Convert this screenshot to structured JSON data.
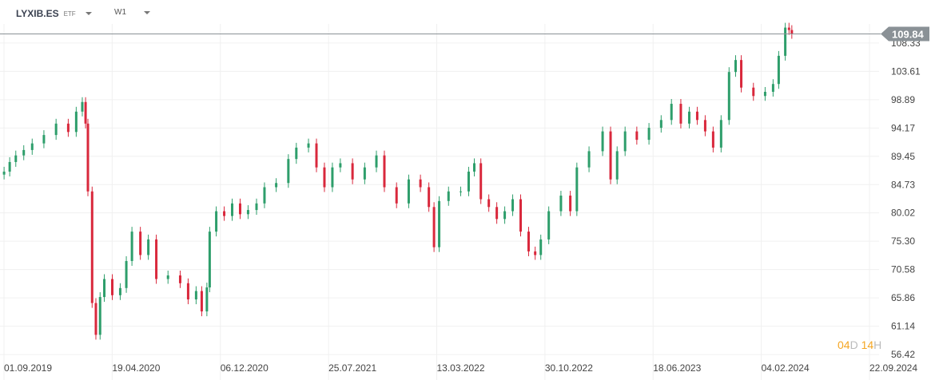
{
  "header": {
    "symbol": "LYXIB.ES",
    "instrument_type": "ETF",
    "timeframe": "W1"
  },
  "countdown": {
    "days": "04",
    "days_unit": "D",
    "hours": "14",
    "hours_unit": "H"
  },
  "colors": {
    "up": "#2e9e6b",
    "down": "#d9283c",
    "price_badge": "#8a9196",
    "countdown": "#f5a623"
  },
  "chart_data": {
    "type": "candlestick",
    "title": "",
    "last_price": 109.84,
    "y_ticks": [
      "108.33",
      "103.61",
      "98.89",
      "94.17",
      "89.45",
      "84.73",
      "80.02",
      "75.30",
      "70.58",
      "65.86",
      "61.14",
      "56.42"
    ],
    "x_ticks": [
      "01.09.2019",
      "19.04.2020",
      "06.12.2020",
      "25.07.2021",
      "13.03.2022",
      "30.10.2022",
      "18.06.2023",
      "04.02.2024",
      "22.09.2024"
    ],
    "ylim": [
      54.3,
      115.5
    ],
    "grid": true,
    "candles": [
      [
        "2019-07-12",
        86.9
      ],
      [
        "2019-07-24",
        88.5
      ],
      [
        "2019-08-06",
        89.6
      ],
      [
        "2019-08-23",
        90.5
      ],
      [
        "2019-09-10",
        91.6
      ],
      [
        "2019-10-05",
        93.0
      ],
      [
        "2019-10-31",
        94.9
      ],
      [
        "2019-11-26",
        93.5
      ],
      [
        "2019-12-13",
        96.9
      ],
      [
        "2019-12-26",
        98.5
      ],
      [
        "2020-01-02",
        94.9
      ],
      [
        "2020-01-07",
        83.6
      ],
      [
        "2020-01-16",
        65.0
      ],
      [
        "2020-01-24",
        59.7
      ],
      [
        "2020-02-02",
        66.0
      ],
      [
        "2020-02-11",
        69.0
      ],
      [
        "2020-02-28",
        66.3
      ],
      [
        "2020-03-16",
        67.5
      ],
      [
        "2020-03-29",
        72.0
      ],
      [
        "2020-04-10",
        76.9
      ],
      [
        "2020-04-28",
        73.0
      ],
      [
        "2020-05-15",
        75.6
      ],
      [
        "2020-06-01",
        69.0
      ],
      [
        "2020-06-26",
        69.6
      ],
      [
        "2020-07-22",
        68.3
      ],
      [
        "2020-08-08",
        65.6
      ],
      [
        "2020-08-25",
        67.0
      ],
      [
        "2020-09-06",
        63.6
      ],
      [
        "2020-09-17",
        67.6
      ],
      [
        "2020-09-23",
        76.9
      ],
      [
        "2020-10-07",
        80.3
      ],
      [
        "2020-10-24",
        79.5
      ],
      [
        "2020-11-10",
        81.6
      ],
      [
        "2020-11-27",
        79.8
      ],
      [
        "2020-12-14",
        80.5
      ],
      [
        "2021-01-01",
        81.6
      ],
      [
        "2021-01-18",
        84.3
      ],
      [
        "2021-02-12",
        85.0
      ],
      [
        "2021-03-10",
        89.0
      ],
      [
        "2021-03-27",
        90.9
      ],
      [
        "2021-04-22",
        91.6
      ],
      [
        "2021-05-09",
        87.6
      ],
      [
        "2021-05-26",
        84.3
      ],
      [
        "2021-06-12",
        87.6
      ],
      [
        "2021-06-29",
        88.3
      ],
      [
        "2021-07-25",
        85.6
      ],
      [
        "2021-08-20",
        87.6
      ],
      [
        "2021-09-14",
        89.6
      ],
      [
        "2021-10-01",
        84.3
      ],
      [
        "2021-10-27",
        81.6
      ],
      [
        "2021-11-22",
        85.6
      ],
      [
        "2021-12-17",
        84.3
      ],
      [
        "2022-01-04",
        81.0
      ],
      [
        "2022-01-15",
        74.3
      ],
      [
        "2022-01-26",
        82.0
      ],
      [
        "2022-02-15",
        83.6
      ],
      [
        "2022-03-13",
        83.6
      ],
      [
        "2022-03-30",
        86.9
      ],
      [
        "2022-04-11",
        88.3
      ],
      [
        "2022-04-25",
        82.3
      ],
      [
        "2022-05-12",
        81.0
      ],
      [
        "2022-05-29",
        79.0
      ],
      [
        "2022-06-15",
        80.3
      ],
      [
        "2022-07-02",
        82.3
      ],
      [
        "2022-07-19",
        76.9
      ],
      [
        "2022-08-05",
        73.6
      ],
      [
        "2022-08-19",
        73.0
      ],
      [
        "2022-08-31",
        75.6
      ],
      [
        "2022-09-17",
        80.3
      ],
      [
        "2022-10-13",
        82.9
      ],
      [
        "2022-11-02",
        80.3
      ],
      [
        "2022-11-16",
        87.6
      ],
      [
        "2022-12-12",
        90.3
      ],
      [
        "2023-01-10",
        93.6
      ],
      [
        "2023-01-27",
        85.6
      ],
      [
        "2023-02-10",
        90.3
      ],
      [
        "2023-02-27",
        93.6
      ],
      [
        "2023-03-24",
        92.2
      ],
      [
        "2023-04-19",
        94.2
      ],
      [
        "2023-05-15",
        95.5
      ],
      [
        "2023-06-06",
        98.2
      ],
      [
        "2023-06-26",
        94.9
      ],
      [
        "2023-07-14",
        96.9
      ],
      [
        "2023-07-31",
        95.5
      ],
      [
        "2023-08-17",
        93.6
      ],
      [
        "2023-09-03",
        90.9
      ],
      [
        "2023-09-20",
        95.5
      ],
      [
        "2023-10-07",
        103.5
      ],
      [
        "2023-10-21",
        105.5
      ],
      [
        "2023-11-02",
        100.9
      ],
      [
        "2023-11-28",
        99.5
      ],
      [
        "2023-12-23",
        100.2
      ],
      [
        "2024-01-09",
        101.5
      ],
      [
        "2024-01-21",
        106.2
      ],
      [
        "2024-02-04",
        110.9
      ],
      [
        "2024-02-12",
        110.5
      ],
      [
        "2024-02-18",
        109.84
      ]
    ]
  }
}
